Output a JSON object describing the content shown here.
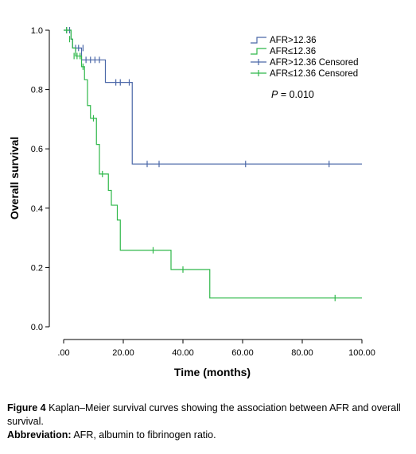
{
  "chart_data": {
    "type": "line",
    "subtype": "kaplan-meier step",
    "xlabel": "Time (months)",
    "ylabel": "Overall survival",
    "xlim": [
      0,
      100
    ],
    "ylim": [
      0,
      1.0
    ],
    "x_ticks": [
      ".00",
      "20.00",
      "40.00",
      "60.00",
      "80.00",
      "100.00"
    ],
    "y_ticks": [
      "0.0",
      "0.2",
      "0.4",
      "0.6",
      "0.8",
      "1.0"
    ],
    "grid": false,
    "legend_position": "top-right",
    "annotation": "P = 0.010",
    "series": [
      {
        "name": "AFR>12.36",
        "color": "#4a67a8",
        "steps": [
          [
            0,
            1.0
          ],
          [
            2.5,
            0.97
          ],
          [
            3,
            0.94
          ],
          [
            6,
            0.9
          ],
          [
            14,
            0.824
          ],
          [
            23,
            0.549
          ],
          [
            100,
            0.549
          ]
        ],
        "end_x": 89,
        "censored_name": "AFR>12.36 Censored",
        "censored": [
          [
            1,
            1.0
          ],
          [
            2,
            1.0
          ],
          [
            4,
            0.94
          ],
          [
            5,
            0.94
          ],
          [
            6.5,
            0.94
          ],
          [
            7.5,
            0.9
          ],
          [
            9,
            0.9
          ],
          [
            10.5,
            0.9
          ],
          [
            12,
            0.9
          ],
          [
            17.5,
            0.824
          ],
          [
            19,
            0.824
          ],
          [
            22,
            0.824
          ],
          [
            28,
            0.549
          ],
          [
            32,
            0.549
          ],
          [
            61,
            0.549
          ],
          [
            89,
            0.549
          ]
        ]
      },
      {
        "name": "AFR≤12.36",
        "color": "#2fb84a",
        "steps": [
          [
            0,
            1.0
          ],
          [
            2.5,
            0.97
          ],
          [
            3,
            0.94
          ],
          [
            4,
            0.913
          ],
          [
            6,
            0.877
          ],
          [
            7,
            0.833
          ],
          [
            8,
            0.746
          ],
          [
            9,
            0.703
          ],
          [
            11,
            0.615
          ],
          [
            12,
            0.515
          ],
          [
            15,
            0.46
          ],
          [
            16,
            0.41
          ],
          [
            18,
            0.36
          ],
          [
            19,
            0.258
          ],
          [
            36,
            0.193
          ],
          [
            49,
            0.097
          ],
          [
            100,
            0.097
          ]
        ],
        "end_x": 91,
        "censored_name": "AFR≤12.36 Censored",
        "censored": [
          [
            1,
            1.0
          ],
          [
            2,
            0.97
          ],
          [
            3.5,
            0.913
          ],
          [
            4.5,
            0.913
          ],
          [
            5.5,
            0.913
          ],
          [
            6.5,
            0.877
          ],
          [
            10,
            0.703
          ],
          [
            13,
            0.515
          ],
          [
            30,
            0.258
          ],
          [
            40,
            0.193
          ],
          [
            91,
            0.097
          ]
        ]
      }
    ]
  },
  "caption": {
    "figure_label": "Figure 4",
    "figure_text": " Kaplan–Meier survival curves showing the association between AFR and overall survival.",
    "abbrev_label": "Abbreviation:",
    "abbrev_text": " AFR, albumin to fibrinogen ratio."
  }
}
